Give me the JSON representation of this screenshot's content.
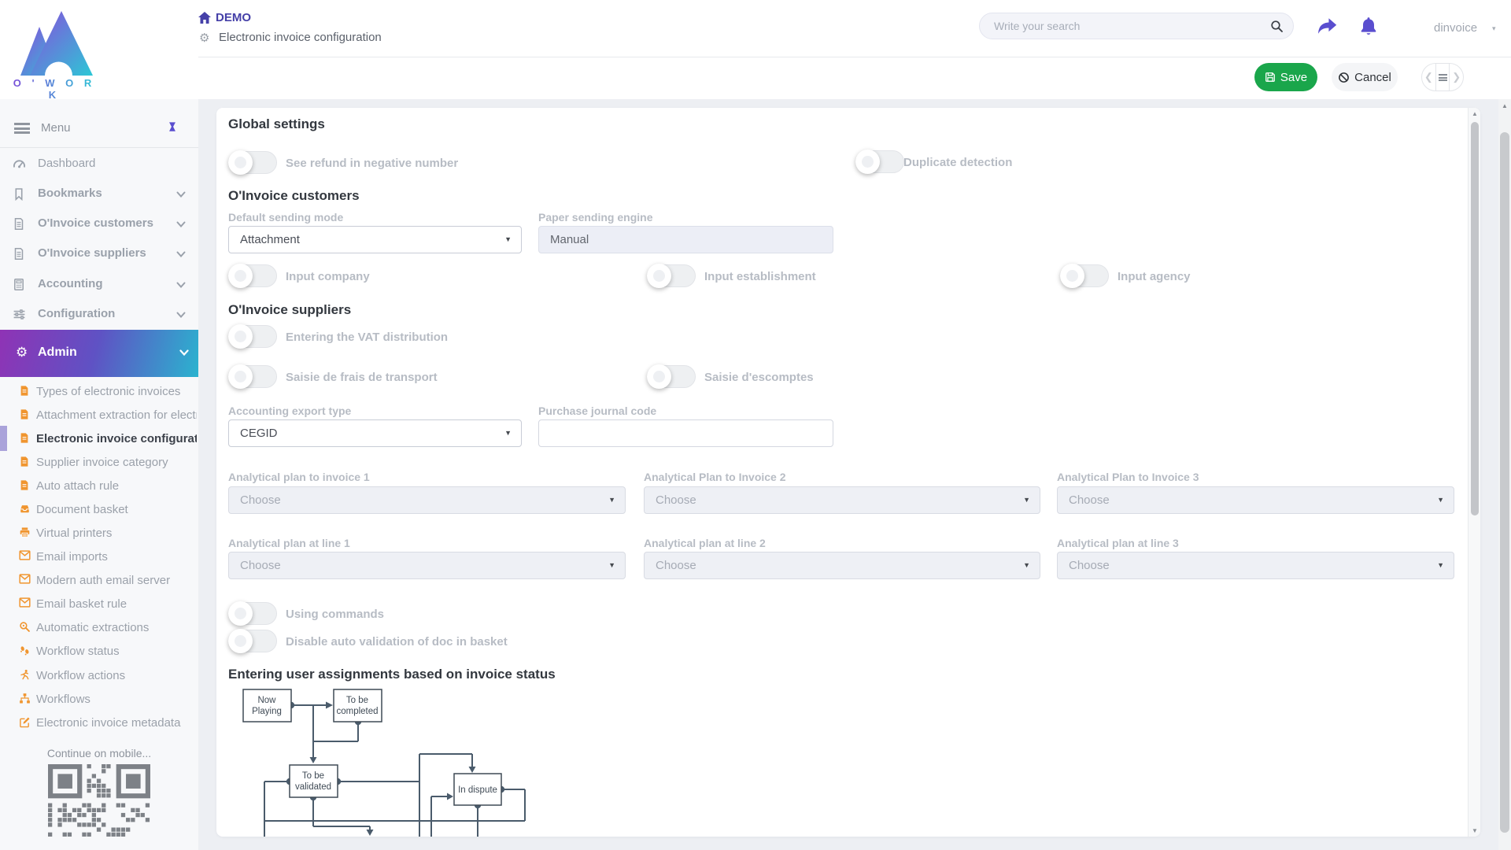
{
  "brand": {
    "name": "O ' W O R K"
  },
  "header": {
    "breadcrumb": "DEMO",
    "page_title": "Electronic invoice configuration",
    "search_placeholder": "Write your search",
    "username": "dinvoice",
    "save_label": "Save",
    "cancel_label": "Cancel"
  },
  "sidebar": {
    "menu_label": "Menu",
    "groups": [
      {
        "label": "Dashboard"
      },
      {
        "label": "Bookmarks"
      },
      {
        "label": "O'Invoice customers"
      },
      {
        "label": "O'Invoice suppliers"
      },
      {
        "label": "Accounting"
      },
      {
        "label": "Configuration"
      }
    ],
    "admin_label": "Admin",
    "admin_items": [
      {
        "label": "Types of electronic invoices",
        "icon": "file-icon"
      },
      {
        "label": "Attachment extraction for electronic invoices",
        "icon": "file-icon"
      },
      {
        "label": "Electronic invoice configuration",
        "icon": "file-icon",
        "active": true
      },
      {
        "label": "Supplier invoice category",
        "icon": "file-icon"
      },
      {
        "label": "Auto attach rule",
        "icon": "file-icon"
      },
      {
        "label": "Document basket",
        "icon": "inbox-icon"
      },
      {
        "label": "Virtual printers",
        "icon": "printer-icon"
      },
      {
        "label": "Email imports",
        "icon": "envelope-icon"
      },
      {
        "label": "Modern auth email server",
        "icon": "envelope-icon"
      },
      {
        "label": "Email basket rule",
        "icon": "envelope-icon"
      },
      {
        "label": "Automatic extractions",
        "icon": "magnifier-icon"
      },
      {
        "label": "Workflow status",
        "icon": "footprints-icon"
      },
      {
        "label": "Workflow actions",
        "icon": "runner-icon"
      },
      {
        "label": "Workflows",
        "icon": "sitemap-icon"
      },
      {
        "label": "Electronic invoice metadata",
        "icon": "pencil-square-icon"
      }
    ],
    "mobile_hint": "Continue on mobile..."
  },
  "main": {
    "global": {
      "title": "Global settings",
      "toggle_refund": "See refund in negative number",
      "toggle_duplicate": "Duplicate detection"
    },
    "customers": {
      "title": "O'Invoice customers",
      "sending_mode_label": "Default sending mode",
      "sending_mode_value": "Attachment",
      "paper_engine_label": "Paper sending engine",
      "paper_engine_value": "Manual",
      "toggle_company": "Input company",
      "toggle_establishment": "Input establishment",
      "toggle_agency": "Input agency"
    },
    "suppliers": {
      "title": "O'Invoice suppliers",
      "toggle_vat": "Entering the VAT distribution",
      "toggle_transport": "Saisie de frais de transport",
      "toggle_discount": "Saisie d'escomptes",
      "export_label": "Accounting export type",
      "export_value": "CEGID",
      "journal_label": "Purchase journal code",
      "journal_value": "",
      "plans": [
        {
          "label": "Analytical plan to invoice 1",
          "value": "Choose"
        },
        {
          "label": "Analytical Plan to Invoice 2",
          "value": "Choose"
        },
        {
          "label": "Analytical Plan to Invoice 3",
          "value": "Choose"
        },
        {
          "label": "Analytical plan at line 1",
          "value": "Choose"
        },
        {
          "label": "Analytical plan at line 2",
          "value": "Choose"
        },
        {
          "label": "Analytical plan at line 3",
          "value": "Choose"
        }
      ],
      "toggle_commands": "Using commands",
      "toggle_autovalid": "Disable auto validation of doc in basket"
    },
    "workflow": {
      "title": "Entering user assignments based on invoice status",
      "nodes": [
        {
          "l1": "Now",
          "l2": "Playing"
        },
        {
          "l1": "To be",
          "l2": "completed"
        },
        {
          "l1": "To be",
          "l2": "validated"
        },
        {
          "l1": "In dispute",
          "l2": ""
        }
      ]
    }
  },
  "colors": {
    "accent_purple": "#5a4ecf",
    "breadcrumb_purple": "#4540a8",
    "admin_gradient": [
      "#8f33b5",
      "#5f52c4",
      "#2bb3cf"
    ],
    "sidebar_icon_orange": "#f0952f",
    "save_green": "#1aa64b",
    "flowchart_slate": "#4a5b6b"
  }
}
